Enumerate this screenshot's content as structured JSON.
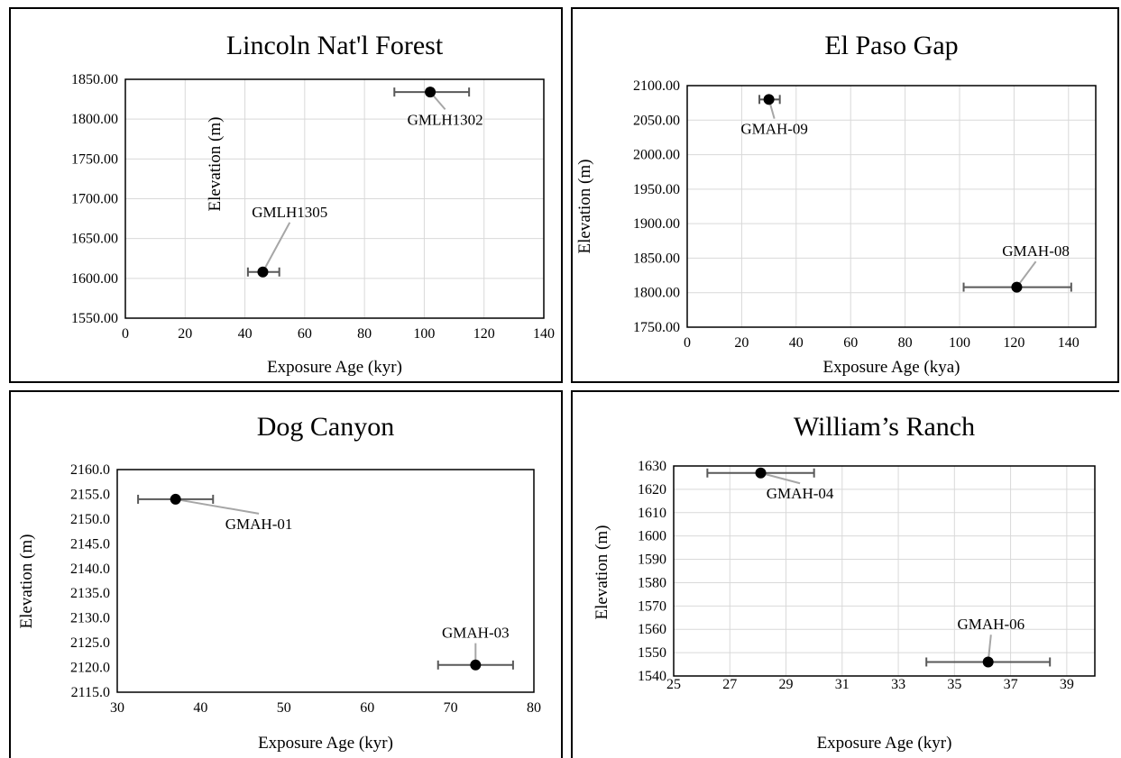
{
  "chart_data": [
    {
      "type": "scatter",
      "title": "Lincoln Nat'l Forest",
      "xlabel": "Exposure Age (kyr)",
      "ylabel": "Elevation (m)",
      "xlim": [
        0,
        140
      ],
      "ylim": [
        1550,
        1850
      ],
      "x_ticks": [
        0,
        20,
        40,
        60,
        80,
        100,
        120,
        140
      ],
      "y_ticks": [
        1550,
        1600,
        1650,
        1700,
        1750,
        1800,
        1850
      ],
      "y_tick_labels": [
        "1550.00",
        "1600.00",
        "1650.00",
        "1700.00",
        "1750.00",
        "1800.00",
        "1850.00"
      ],
      "grid": true,
      "points": [
        {
          "label": "GMLH1302",
          "x": 102,
          "y": 1834,
          "x_err_low": 90,
          "x_err_high": 115,
          "label_at": [
            107,
            1793
          ]
        },
        {
          "label": "GMLH1305",
          "x": 46,
          "y": 1608,
          "x_err_low": 41,
          "x_err_high": 51.5,
          "label_at": [
            55,
            1677
          ]
        }
      ]
    },
    {
      "type": "scatter",
      "title": "El Paso  Gap",
      "xlabel": "Exposure Age (kya)",
      "ylabel": "Elevation (m)",
      "xlim": [
        0,
        150
      ],
      "ylim": [
        1750,
        2100
      ],
      "x_ticks": [
        0,
        20,
        40,
        60,
        80,
        100,
        120,
        140
      ],
      "y_ticks": [
        1750,
        1800,
        1850,
        1900,
        1950,
        2000,
        2050,
        2100
      ],
      "y_tick_labels": [
        "1750.00",
        "1800.00",
        "1850.00",
        "1900.00",
        "1950.00",
        "2000.00",
        "2050.00",
        "2100.00"
      ],
      "grid": true,
      "points": [
        {
          "label": "GMAH-09",
          "x": 30,
          "y": 2080,
          "x_err_low": 26.5,
          "x_err_high": 34,
          "label_at": [
            32,
            2030
          ]
        },
        {
          "label": "GMAH-08",
          "x": 121,
          "y": 1808,
          "x_err_low": 101.5,
          "x_err_high": 141,
          "label_at": [
            128,
            1853
          ]
        }
      ]
    },
    {
      "type": "scatter",
      "title": "Dog  Canyon",
      "xlabel": "Exposure Age (kyr)",
      "ylabel": "Elevation (m)",
      "xlim": [
        30,
        80
      ],
      "ylim": [
        2115,
        2160
      ],
      "x_ticks": [
        30,
        40,
        50,
        60,
        70,
        80
      ],
      "y_ticks": [
        2115,
        2120,
        2125,
        2130,
        2135,
        2140,
        2145,
        2150,
        2155,
        2160
      ],
      "y_tick_labels": [
        "2115.0",
        "2120.0",
        "2125.0",
        "2130.0",
        "2135.0",
        "2140.0",
        "2145.0",
        "2150.0",
        "2155.0",
        "2160.0"
      ],
      "grid": false,
      "points": [
        {
          "label": "GMAH-01",
          "x": 37,
          "y": 2154,
          "x_err_low": 32.5,
          "x_err_high": 41.5,
          "label_at": [
            47,
            2148
          ]
        },
        {
          "label": "GMAH-03",
          "x": 73,
          "y": 2120.5,
          "x_err_low": 68.5,
          "x_err_high": 77.5,
          "label_at": [
            73,
            2126
          ]
        }
      ]
    },
    {
      "type": "scatter",
      "title": "William’s  Ranch",
      "xlabel": "Exposure Age (kyr)",
      "ylabel": "Elevation (m)",
      "xlim": [
        25,
        40
      ],
      "ylim": [
        1540,
        1630
      ],
      "x_ticks": [
        25,
        27,
        29,
        31,
        33,
        35,
        37,
        39
      ],
      "y_ticks": [
        1540,
        1550,
        1560,
        1570,
        1580,
        1590,
        1600,
        1610,
        1620,
        1630
      ],
      "y_tick_labels": [
        "1540",
        "1550",
        "1560",
        "1570",
        "1580",
        "1590",
        "1600",
        "1610",
        "1620",
        "1630"
      ],
      "grid": true,
      "points": [
        {
          "label": "GMAH-04",
          "x": 28.1,
          "y": 1627,
          "x_err_low": 26.2,
          "x_err_high": 30.0,
          "label_at": [
            29.5,
            1616
          ]
        },
        {
          "label": "GMAH-06",
          "x": 36.2,
          "y": 1546,
          "x_err_low": 34.0,
          "x_err_high": 38.4,
          "label_at": [
            36.3,
            1560
          ]
        }
      ]
    }
  ]
}
